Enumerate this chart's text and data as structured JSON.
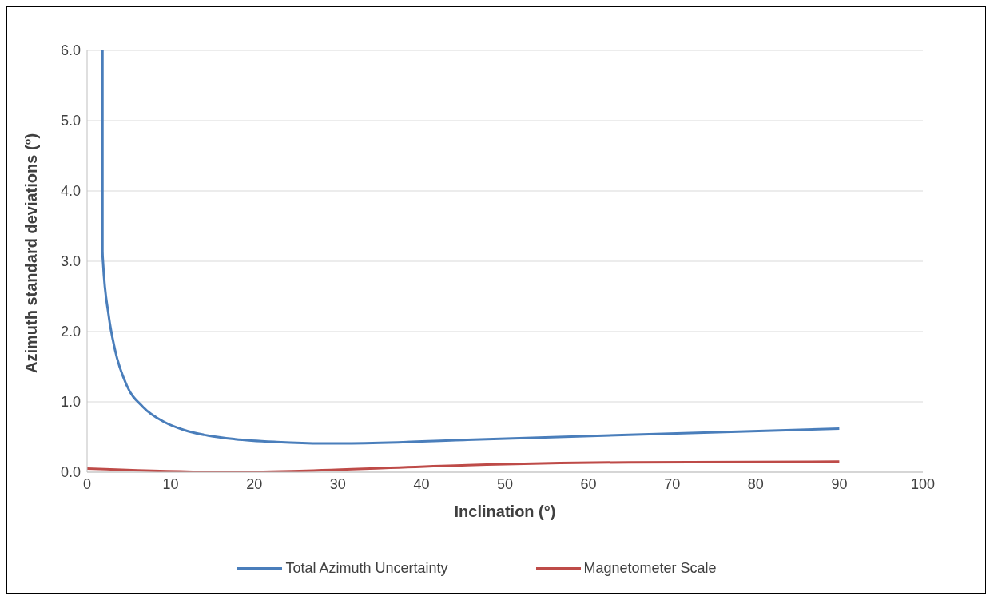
{
  "chart_data": {
    "type": "line",
    "xlabel": "Inclination (°)",
    "ylabel": "Azimuth standard deviations (°)",
    "xlim": [
      0,
      100
    ],
    "xticks": [
      0,
      10,
      20,
      30,
      40,
      50,
      60,
      70,
      80,
      90,
      100
    ],
    "ylim": [
      0,
      6
    ],
    "yticks": [
      {
        "value": 0,
        "label": "0.0"
      },
      {
        "value": 1,
        "label": "1.0"
      },
      {
        "value": 2,
        "label": "2.0"
      },
      {
        "value": 3,
        "label": "3.0"
      },
      {
        "value": 4,
        "label": "4.0"
      },
      {
        "value": 5,
        "label": "5.0"
      },
      {
        "value": 6,
        "label": "6.0"
      }
    ],
    "grid": "y",
    "legend": "bottom",
    "marker": "none",
    "line_style": "solid",
    "series": [
      {
        "name": "Total Azimuth Uncertainty",
        "color": "#4a7ebb",
        "x": [
          1.84,
          1.84,
          1.91,
          2.58,
          3.32,
          4.76,
          6.67,
          9.29,
          11.6,
          14.5,
          17.7,
          22.7,
          28.1,
          31,
          45.5,
          64.8,
          90
        ],
        "values": [
          6,
          3.14,
          2.98,
          2.23,
          1.75,
          1.23,
          0.93,
          0.71,
          0.6,
          0.52,
          0.47,
          0.43,
          0.41,
          0.41,
          0.46,
          0.53,
          0.62
        ]
      },
      {
        "name": "Magnetometer Scale",
        "color": "#be4b48",
        "x": [
          0,
          17,
          26.2,
          45.5,
          64.8,
          90
        ],
        "values": [
          0.05,
          0,
          0.02,
          0.1,
          0.14,
          0.15
        ]
      }
    ]
  }
}
